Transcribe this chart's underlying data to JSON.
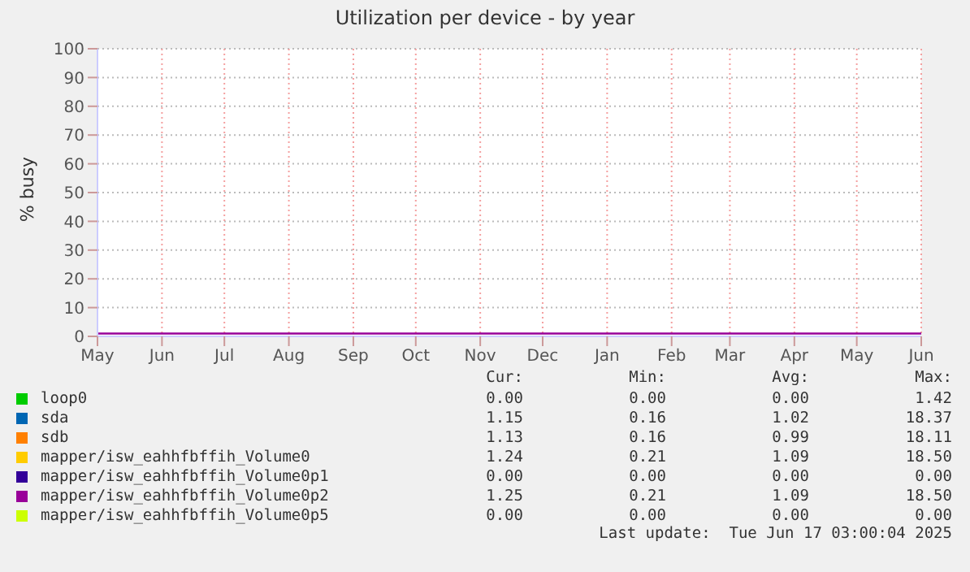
{
  "chart_data": {
    "type": "line",
    "title": "Utilization per device - by year",
    "ylabel": "% busy",
    "x": [
      "2024-05-01",
      "2024-06-01",
      "2024-07-01",
      "2024-08-01",
      "2024-09-01",
      "2024-10-01",
      "2024-11-01",
      "2024-12-01",
      "2025-01-01",
      "2025-02-01",
      "2025-03-01",
      "2025-04-01",
      "2025-05-01",
      "2025-06-01"
    ],
    "xlim": [
      "2024-05-01",
      "2025-06-01"
    ],
    "xticks": [
      {
        "value": "2024-05-01",
        "label": "May"
      },
      {
        "value": "2024-06-01",
        "label": "Jun"
      },
      {
        "value": "2024-07-01",
        "label": "Jul"
      },
      {
        "value": "2024-08-01",
        "label": "Aug"
      },
      {
        "value": "2024-09-01",
        "label": "Sep"
      },
      {
        "value": "2024-10-01",
        "label": "Oct"
      },
      {
        "value": "2024-11-01",
        "label": "Nov"
      },
      {
        "value": "2024-12-01",
        "label": "Dec"
      },
      {
        "value": "2025-01-01",
        "label": "Jan"
      },
      {
        "value": "2025-02-01",
        "label": "Feb"
      },
      {
        "value": "2025-03-01",
        "label": "Mar"
      },
      {
        "value": "2025-04-01",
        "label": "Apr"
      },
      {
        "value": "2025-05-01",
        "label": "May"
      },
      {
        "value": "2025-06-01",
        "label": "Jun"
      }
    ],
    "ylim": [
      0,
      100
    ],
    "yticks": [
      0,
      10,
      20,
      30,
      40,
      50,
      60,
      70,
      80,
      90,
      100
    ],
    "grid": true,
    "legend": "bottom",
    "series": [
      {
        "name": "loop0",
        "color": "#00cc00",
        "values": [
          null,
          null,
          null,
          null,
          null,
          null,
          null,
          null,
          null,
          null,
          null,
          null,
          null,
          null
        ]
      },
      {
        "name": "sda",
        "color": "#0066b3",
        "values": [
          null,
          null,
          null,
          null,
          null,
          null,
          null,
          null,
          null,
          null,
          null,
          null,
          null,
          null
        ]
      },
      {
        "name": "sdb",
        "color": "#ff8000",
        "values": [
          null,
          null,
          null,
          null,
          null,
          null,
          null,
          null,
          null,
          null,
          null,
          null,
          null,
          null
        ]
      },
      {
        "name": "mapper/isw_eahhfbffih_Volume0",
        "color": "#ffcc00",
        "values": [
          null,
          null,
          null,
          null,
          null,
          null,
          null,
          null,
          null,
          null,
          null,
          null,
          null,
          null
        ]
      },
      {
        "name": "mapper/isw_eahhfbffih_Volume0p1",
        "color": "#330099",
        "values": [
          null,
          null,
          null,
          null,
          null,
          null,
          null,
          null,
          null,
          null,
          null,
          null,
          null,
          null
        ]
      },
      {
        "name": "mapper/isw_eahhfbffih_Volume0p2",
        "color": "#990099",
        "values": [
          1,
          1,
          1,
          1,
          1,
          1,
          1,
          1,
          1,
          1,
          1,
          1,
          1,
          1
        ]
      },
      {
        "name": "mapper/isw_eahhfbffih_Volume0p5",
        "color": "#ccff00",
        "values": [
          null,
          null,
          null,
          null,
          null,
          null,
          null,
          null,
          null,
          null,
          null,
          null,
          null,
          null
        ]
      }
    ],
    "annotations": [
      "Cur:",
      "Min:",
      "Avg:",
      "Max:",
      "0.00",
      "0.00",
      "0.00",
      "1.42",
      "1.15",
      "0.16",
      "1.02",
      "18.37",
      "1.13",
      "0.16",
      "0.99",
      "18.11",
      "1.24",
      "0.21",
      "1.09",
      "18.50",
      "0.00",
      "0.00",
      "0.00",
      "0.00",
      "1.25",
      "0.21",
      "1.09",
      "18.50",
      "0.00",
      "0.00",
      "0.00",
      "0.00",
      "Last update:  Tue Jun 17 03:00:04 2025"
    ]
  }
}
